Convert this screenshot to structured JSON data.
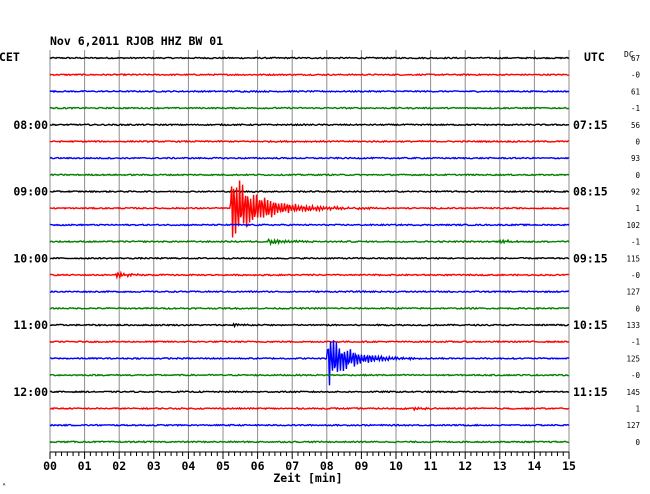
{
  "header": {
    "title": "Nov 6,2011   RJOB HHZ BW 01",
    "left_zone": "CET",
    "right_zone": "UTC",
    "dc_label": "DC"
  },
  "chart_data": {
    "type": "line",
    "title": "Nov 6,2011   RJOB HHZ BW 01",
    "xlabel": "Zeit [min]",
    "ylabel": "",
    "xlim": [
      0,
      15
    ],
    "x_ticks": [
      "00",
      "01",
      "02",
      "03",
      "04",
      "05",
      "06",
      "07",
      "08",
      "09",
      "10",
      "11",
      "12",
      "13",
      "14",
      "15"
    ],
    "grid": true,
    "line_colors": [
      "#000000",
      "#ff0000",
      "#0000ff",
      "#007f00"
    ],
    "trace_interval_minutes": 15,
    "left_hour_labels": [
      {
        "trace": 4,
        "text": "08:00"
      },
      {
        "trace": 8,
        "text": "09:00"
      },
      {
        "trace": 12,
        "text": "10:00"
      },
      {
        "trace": 16,
        "text": "11:00"
      },
      {
        "trace": 20,
        "text": "12:00"
      }
    ],
    "right_hour_labels": [
      {
        "trace": 4,
        "text": "07:15"
      },
      {
        "trace": 8,
        "text": "08:15"
      },
      {
        "trace": 12,
        "text": "09:15"
      },
      {
        "trace": 16,
        "text": "10:15"
      },
      {
        "trace": 20,
        "text": "11:15"
      }
    ],
    "dc_offsets": [
      "67",
      "-0",
      "61",
      "-1",
      "56",
      "0",
      "93",
      "0",
      "92",
      "1",
      "102",
      "-1",
      "115",
      "-0",
      "127",
      "0",
      "133",
      "-1",
      "125",
      "-0",
      "145",
      "1",
      "127",
      "0"
    ],
    "events": [
      {
        "trace": 9,
        "start_min": 5.2,
        "amplitude": 1.0,
        "decay_min": 0.9
      },
      {
        "trace": 11,
        "start_min": 6.3,
        "amplitude": 0.08,
        "decay_min": 0.6
      },
      {
        "trace": 11,
        "start_min": 13.0,
        "amplitude": 0.06,
        "decay_min": 0.3
      },
      {
        "trace": 13,
        "start_min": 1.9,
        "amplitude": 0.08,
        "decay_min": 0.4
      },
      {
        "trace": 16,
        "start_min": 5.3,
        "amplitude": 0.05,
        "decay_min": 0.3
      },
      {
        "trace": 18,
        "start_min": 8.0,
        "amplitude": 0.9,
        "decay_min": 0.6
      },
      {
        "trace": 21,
        "start_min": 10.5,
        "amplitude": 0.05,
        "decay_min": 0.3
      }
    ]
  }
}
